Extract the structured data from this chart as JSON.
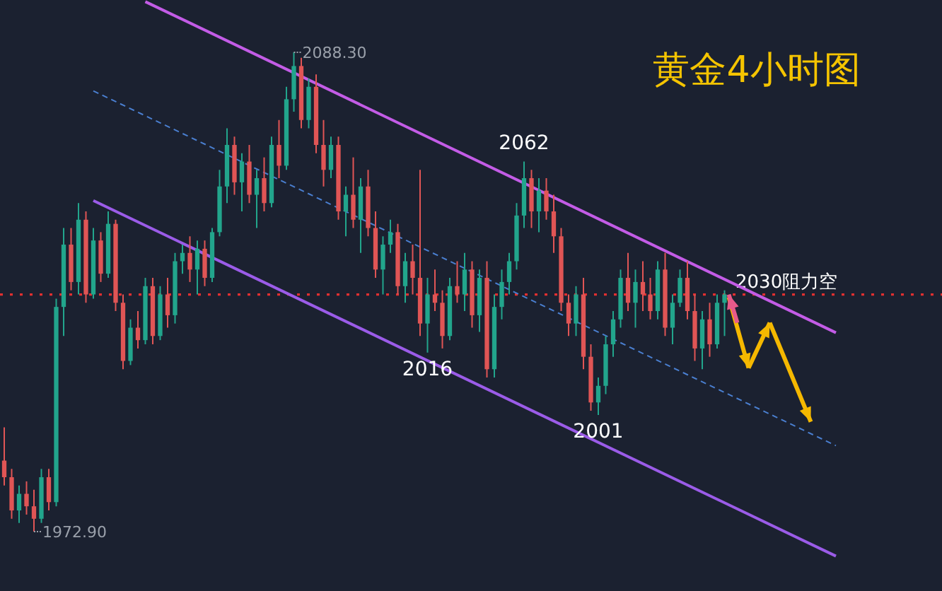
{
  "chart_data": {
    "type": "candlestick",
    "title": "黄金4小时图",
    "categories": [
      null,
      null,
      null,
      null,
      null,
      null,
      null,
      null,
      null,
      null,
      null,
      null,
      null,
      null,
      null,
      null,
      null,
      null,
      null,
      null,
      null,
      null,
      null,
      null,
      null,
      null,
      null,
      null,
      null,
      null,
      null,
      null,
      null,
      null,
      null,
      null,
      null,
      null,
      null,
      null,
      null,
      null,
      null,
      null,
      null,
      null,
      null,
      null,
      null,
      null,
      null,
      null,
      null,
      null,
      null,
      null,
      null,
      null,
      null,
      null,
      null,
      null,
      null,
      null,
      null,
      null,
      null,
      null,
      null,
      null,
      null,
      null,
      null,
      null,
      null,
      null,
      null,
      null,
      null,
      null,
      null,
      null,
      null,
      null,
      null,
      null,
      null,
      null,
      null,
      null,
      null,
      null,
      null,
      null,
      null,
      null,
      null,
      null,
      null,
      null,
      null,
      null,
      null,
      null,
      null,
      null,
      null,
      null,
      null,
      null,
      null,
      null,
      null
    ],
    "ohlc": [
      [
        1990,
        1998,
        1984,
        1986
      ],
      [
        1986,
        1988,
        1976,
        1978
      ],
      [
        1978,
        1984,
        1975,
        1982
      ],
      [
        1982,
        1985,
        1977,
        1979
      ],
      [
        1979,
        1983,
        1972.9,
        1976
      ],
      [
        1976,
        1988,
        1975,
        1986
      ],
      [
        1986,
        1988,
        1978,
        1980
      ],
      [
        1980,
        2029,
        1979,
        2027
      ],
      [
        2027,
        2046,
        2020,
        2042
      ],
      [
        2042,
        2046,
        2031,
        2033
      ],
      [
        2033,
        2052,
        2030,
        2048
      ],
      [
        2048,
        2050,
        2028,
        2030
      ],
      [
        2030,
        2046,
        2029,
        2043
      ],
      [
        2043,
        2045,
        2033,
        2035
      ],
      [
        2035,
        2050,
        2034,
        2047
      ],
      [
        2047,
        2048,
        2026,
        2028
      ],
      [
        2028,
        2030,
        2012,
        2014
      ],
      [
        2014,
        2024,
        2013,
        2022
      ],
      [
        2022,
        2026,
        2017,
        2019
      ],
      [
        2019,
        2034,
        2018,
        2032
      ],
      [
        2032,
        2034,
        2018,
        2020
      ],
      [
        2020,
        2032,
        2019,
        2030
      ],
      [
        2030,
        2034,
        2022,
        2025
      ],
      [
        2025,
        2040,
        2023,
        2038
      ],
      [
        2038,
        2042,
        2035,
        2040
      ],
      [
        2040,
        2044,
        2033,
        2036
      ],
      [
        2036,
        2043,
        2030,
        2041
      ],
      [
        2041,
        2043,
        2032,
        2034
      ],
      [
        2034,
        2046,
        2033,
        2045
      ],
      [
        2045,
        2060,
        2044,
        2056
      ],
      [
        2056,
        2070,
        2052,
        2066
      ],
      [
        2066,
        2068,
        2054,
        2057
      ],
      [
        2057,
        2064,
        2050,
        2062
      ],
      [
        2062,
        2066,
        2052,
        2054
      ],
      [
        2054,
        2060,
        2046,
        2058
      ],
      [
        2058,
        2063,
        2050,
        2052
      ],
      [
        2052,
        2068,
        2051,
        2066
      ],
      [
        2066,
        2072,
        2058,
        2061
      ],
      [
        2061,
        2080,
        2060,
        2077
      ],
      [
        2077,
        2088.3,
        2074,
        2085
      ],
      [
        2085,
        2087,
        2070,
        2072
      ],
      [
        2072,
        2082,
        2070,
        2080
      ],
      [
        2080,
        2083,
        2064,
        2066
      ],
      [
        2066,
        2072,
        2056,
        2060
      ],
      [
        2060,
        2068,
        2058,
        2066
      ],
      [
        2066,
        2068,
        2048,
        2050
      ],
      [
        2050,
        2056,
        2044,
        2054
      ],
      [
        2054,
        2063,
        2046,
        2048
      ],
      [
        2048,
        2058,
        2040,
        2056
      ],
      [
        2056,
        2060,
        2044,
        2046
      ],
      [
        2046,
        2050,
        2034,
        2036
      ],
      [
        2036,
        2044,
        2030,
        2042
      ],
      [
        2042,
        2048,
        2040,
        2045
      ],
      [
        2045,
        2047,
        2030,
        2032
      ],
      [
        2032,
        2040,
        2028,
        2038
      ],
      [
        2038,
        2042,
        2030,
        2034
      ],
      [
        2034,
        2060,
        2020,
        2023
      ],
      [
        2023,
        2034,
        2016,
        2030
      ],
      [
        2030,
        2036,
        2026,
        2028
      ],
      [
        2028,
        2031,
        2017,
        2020
      ],
      [
        2020,
        2034,
        2019,
        2032
      ],
      [
        2032,
        2038,
        2028,
        2030
      ],
      [
        2030,
        2040,
        2026,
        2036
      ],
      [
        2036,
        2038,
        2022,
        2025
      ],
      [
        2025,
        2036,
        2021,
        2034
      ],
      [
        2034,
        2038,
        2010,
        2012
      ],
      [
        2012,
        2030,
        2010,
        2027
      ],
      [
        2027,
        2036,
        2024,
        2033
      ],
      [
        2033,
        2040,
        2030,
        2038
      ],
      [
        2038,
        2052,
        2036,
        2049
      ],
      [
        2049,
        2062,
        2046,
        2058
      ],
      [
        2058,
        2060,
        2046,
        2050
      ],
      [
        2050,
        2058,
        2045,
        2055
      ],
      [
        2055,
        2058,
        2048,
        2050
      ],
      [
        2050,
        2054,
        2040,
        2044
      ],
      [
        2044,
        2046,
        2026,
        2028
      ],
      [
        2028,
        2030,
        2020,
        2023
      ],
      [
        2023,
        2032,
        2020,
        2030
      ],
      [
        2030,
        2034,
        2012,
        2015
      ],
      [
        2015,
        2018,
        2002,
        2004
      ],
      [
        2004,
        2010,
        2001,
        2008
      ],
      [
        2008,
        2020,
        2006,
        2018
      ],
      [
        2018,
        2026,
        2015,
        2024
      ],
      [
        2024,
        2036,
        2022,
        2034
      ],
      [
        2034,
        2040,
        2026,
        2028
      ],
      [
        2028,
        2036,
        2022,
        2033
      ],
      [
        2033,
        2038,
        2026,
        2030
      ],
      [
        2030,
        2034,
        2024,
        2026
      ],
      [
        2026,
        2038,
        2024,
        2036
      ],
      [
        2036,
        2040,
        2020,
        2022
      ],
      [
        2022,
        2030,
        2018,
        2028
      ],
      [
        2028,
        2036,
        2027,
        2034
      ],
      [
        2034,
        2038,
        2024,
        2026
      ],
      [
        2026,
        2030,
        2014,
        2017
      ],
      [
        2017,
        2026,
        2012,
        2024
      ],
      [
        2024,
        2028,
        2015,
        2018
      ],
      [
        2018,
        2030,
        2017,
        2028
      ],
      [
        2028,
        2031,
        2020,
        2030
      ],
      null,
      null,
      null,
      null,
      null,
      null,
      null,
      null,
      null,
      null,
      null,
      null,
      null,
      null,
      null
    ],
    "series": [
      {
        "type": "line",
        "color": "#c35ce6",
        "values": [
          null,
          null,
          null,
          null,
          null,
          null,
          null,
          null,
          null,
          null,
          null,
          null,
          null,
          null,
          null,
          null,
          null,
          null,
          null,
          2100.5,
          null,
          null,
          null,
          null,
          null,
          null,
          null,
          null,
          null,
          null,
          null,
          null,
          null,
          null,
          null,
          null,
          null,
          null,
          null,
          null,
          null,
          null,
          null,
          null,
          null,
          null,
          null,
          null,
          null,
          null,
          null,
          null,
          null,
          null,
          null,
          null,
          null,
          null,
          null,
          null,
          null,
          null,
          null,
          null,
          null,
          null,
          null,
          null,
          null,
          null,
          null,
          null,
          null,
          null,
          null,
          null,
          null,
          null,
          null,
          null,
          null,
          null,
          null,
          null,
          null,
          null,
          null,
          null,
          null,
          null,
          null,
          null,
          null,
          null,
          null,
          null,
          null,
          null,
          null,
          null,
          null,
          null,
          null,
          null,
          null,
          null,
          null,
          null,
          null,
          null,
          null,
          null,
          2020.8
        ]
      },
      {
        "type": "line",
        "color": "#9b5ce8",
        "values": [
          null,
          null,
          null,
          null,
          null,
          null,
          null,
          null,
          null,
          null,
          null,
          null,
          2052.6,
          null,
          null,
          null,
          null,
          null,
          null,
          null,
          null,
          null,
          null,
          null,
          null,
          null,
          null,
          null,
          null,
          null,
          null,
          null,
          null,
          null,
          null,
          null,
          null,
          null,
          null,
          null,
          null,
          null,
          null,
          null,
          null,
          null,
          null,
          null,
          null,
          null,
          null,
          null,
          null,
          null,
          null,
          null,
          null,
          null,
          null,
          null,
          null,
          null,
          null,
          null,
          null,
          null,
          null,
          null,
          null,
          null,
          null,
          null,
          null,
          null,
          null,
          null,
          null,
          null,
          null,
          null,
          null,
          null,
          null,
          null,
          null,
          null,
          null,
          null,
          null,
          null,
          null,
          null,
          null,
          null,
          null,
          null,
          null,
          null,
          null,
          null,
          null,
          null,
          null,
          null,
          null,
          null,
          null,
          null,
          null,
          null,
          null,
          null,
          1967.0
        ]
      },
      {
        "type": "line",
        "color": "#4a7fd0",
        "line_style": "dashed",
        "values": [
          null,
          null,
          null,
          null,
          null,
          null,
          null,
          null,
          null,
          null,
          null,
          null,
          2079.0,
          null,
          null,
          null,
          null,
          null,
          null,
          null,
          null,
          null,
          null,
          null,
          null,
          null,
          null,
          null,
          null,
          null,
          null,
          null,
          null,
          null,
          null,
          null,
          null,
          null,
          null,
          null,
          null,
          null,
          null,
          null,
          null,
          null,
          null,
          null,
          null,
          null,
          null,
          null,
          null,
          null,
          null,
          null,
          null,
          null,
          null,
          null,
          null,
          null,
          null,
          null,
          null,
          null,
          null,
          null,
          null,
          null,
          null,
          null,
          null,
          null,
          null,
          null,
          null,
          null,
          null,
          null,
          null,
          null,
          null,
          null,
          null,
          null,
          null,
          null,
          null,
          null,
          null,
          null,
          null,
          null,
          null,
          null,
          null,
          null,
          null,
          null,
          null,
          null,
          null,
          null,
          null,
          null,
          null,
          null,
          null,
          null,
          null,
          null,
          1993.6
        ]
      }
    ],
    "ref_lines": [
      {
        "axis": "y",
        "value": 2030,
        "label": "2030阻力空",
        "color": "#e03030",
        "line_style": "dotted"
      }
    ],
    "annotations": [
      "2088.30",
      "1972.90",
      {
        "text": "2062",
        "y": 2062
      },
      {
        "text": "2016",
        "y": 2016
      },
      {
        "text": "2001",
        "y": 2001
      }
    ]
  }
}
